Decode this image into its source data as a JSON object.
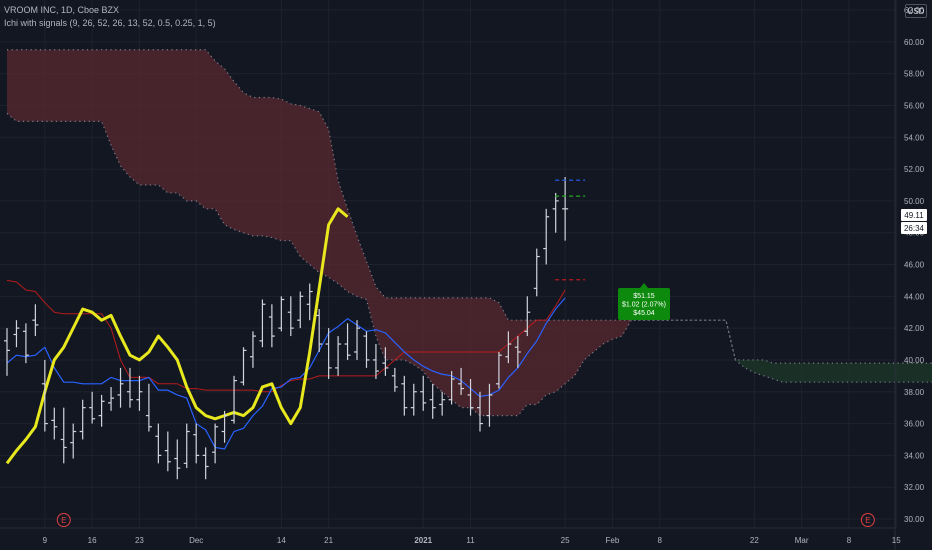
{
  "header": {
    "title": "VROOM INC, 1D, Cboe BZX",
    "indicator": "Ichi with signals (9, 26, 52, 26, 13, 52, 0.5, 0.25, 1, 5)",
    "currency": "USD"
  },
  "colors": {
    "background": "#131722",
    "grid": "#1e222d",
    "bars": "#d1d4dc",
    "conversion_line": "#2962ff",
    "base_line": "#b71c1c",
    "lagging_line": "#e8e81e",
    "cloud_bearish": "#5a2830",
    "cloud_bullish": "#1e3a2a",
    "label_bg": "#0d8a0d"
  },
  "chart_data": {
    "type": "ohlc",
    "title": "VROOM INC, 1D, Cboe BZX",
    "ylim": [
      29.5,
      62.5
    ],
    "y_ticks": [
      "62.00",
      "60.00",
      "58.00",
      "56.00",
      "54.00",
      "52.00",
      "50.00",
      "48.00",
      "46.00",
      "44.00",
      "42.00",
      "40.00",
      "38.00",
      "36.00",
      "34.00",
      "32.00",
      "30.00"
    ],
    "x_ticks": [
      "9",
      "16",
      "23",
      "Dec",
      "14",
      "21",
      "2021",
      "11",
      "25",
      "Feb",
      "8",
      "22",
      "Mar",
      "8",
      "15"
    ],
    "bars_ohlc": [
      [
        41.2,
        42.0,
        39.0,
        40.6
      ],
      [
        41.6,
        42.5,
        40.8,
        42.0
      ],
      [
        41.8,
        42.3,
        39.8,
        40.3
      ],
      [
        42.5,
        43.5,
        41.5,
        42.2
      ],
      [
        38.5,
        40.0,
        35.5,
        36.0
      ],
      [
        36.2,
        37.0,
        35.0,
        35.8
      ],
      [
        35.0,
        37.0,
        33.5,
        34.5
      ],
      [
        34.8,
        36.0,
        33.8,
        35.5
      ],
      [
        35.5,
        37.5,
        35.0,
        37.0
      ],
      [
        37.0,
        38.0,
        36.0,
        36.3
      ],
      [
        36.5,
        37.8,
        35.8,
        37.4
      ],
      [
        37.3,
        38.3,
        36.8,
        37.6
      ],
      [
        37.8,
        39.5,
        37.0,
        38.5
      ],
      [
        38.0,
        39.5,
        37.0,
        37.5
      ],
      [
        37.5,
        39.0,
        36.8,
        38.0
      ],
      [
        36.5,
        38.5,
        35.5,
        35.8
      ],
      [
        35.2,
        36.0,
        33.5,
        34.0
      ],
      [
        34.3,
        35.5,
        33.0,
        33.6
      ],
      [
        33.8,
        35.0,
        32.5,
        33.2
      ],
      [
        33.5,
        36.0,
        33.2,
        35.5
      ],
      [
        35.3,
        36.0,
        33.5,
        34.0
      ],
      [
        34.0,
        34.5,
        32.5,
        33.3
      ],
      [
        34.2,
        36.0,
        33.5,
        35.8
      ],
      [
        35.5,
        36.8,
        34.8,
        36.5
      ],
      [
        36.2,
        39.0,
        36.0,
        38.7
      ],
      [
        38.6,
        40.8,
        38.4,
        40.6
      ],
      [
        40.2,
        41.8,
        39.5,
        41.5
      ],
      [
        41.2,
        43.8,
        40.8,
        43.5
      ],
      [
        42.7,
        43.5,
        40.8,
        41.5
      ],
      [
        42.0,
        44.0,
        41.8,
        43.8
      ],
      [
        43.0,
        44.0,
        41.5,
        42.0
      ],
      [
        42.5,
        44.3,
        42.0,
        44.0
      ],
      [
        43.5,
        44.8,
        42.5,
        44.3
      ],
      [
        42.8,
        43.2,
        40.5,
        41.0
      ],
      [
        41.0,
        42.0,
        38.8,
        39.5
      ],
      [
        39.5,
        41.5,
        39.0,
        41.0
      ],
      [
        41.0,
        42.3,
        40.0,
        40.3
      ],
      [
        40.5,
        42.5,
        40.0,
        42.0
      ],
      [
        41.5,
        41.8,
        39.5,
        40.0
      ],
      [
        40.0,
        41.0,
        38.8,
        39.3
      ],
      [
        39.8,
        40.8,
        39.0,
        39.5
      ],
      [
        39.0,
        39.5,
        38.0,
        38.3
      ],
      [
        38.5,
        39.0,
        36.5,
        37.0
      ],
      [
        37.0,
        38.5,
        36.5,
        38.0
      ],
      [
        38.0,
        39.0,
        36.8,
        37.3
      ],
      [
        37.5,
        38.5,
        36.3,
        37.0
      ],
      [
        37.2,
        38.0,
        36.5,
        37.5
      ],
      [
        37.5,
        39.3,
        37.2,
        38.8
      ],
      [
        38.5,
        39.5,
        37.8,
        38.2
      ],
      [
        37.8,
        38.8,
        36.5,
        37.0
      ],
      [
        37.0,
        38.0,
        35.5,
        36.0
      ],
      [
        36.5,
        38.5,
        35.8,
        37.8
      ],
      [
        38.5,
        40.5,
        38.2,
        40.3
      ],
      [
        40.2,
        41.8,
        39.8,
        41.0
      ],
      [
        40.8,
        41.5,
        39.5,
        40.5
      ],
      [
        41.8,
        44.0,
        41.5,
        43.0
      ],
      [
        44.5,
        47.0,
        44.0,
        46.5
      ],
      [
        47.0,
        49.5,
        46.0,
        49.0
      ],
      [
        49.5,
        50.5,
        48.0,
        50.0
      ],
      [
        49.5,
        51.5,
        47.5,
        49.5
      ]
    ],
    "bar_dates_start": "2020-11-03",
    "conversion_line": [
      39.8,
      40.3,
      40.2,
      40.3,
      40.8,
      39.5,
      38.6,
      38.6,
      38.5,
      38.5,
      38.5,
      38.9,
      38.7,
      38.7,
      38.7,
      38.9,
      38.1,
      38.1,
      37.8,
      37.6,
      36.0,
      35.6,
      34.5,
      34.4,
      35.5,
      35.7,
      36.5,
      37.1,
      38.2,
      38.3,
      38.8,
      38.9,
      39.5,
      40.6,
      41.7,
      42.1,
      42.6,
      42.2,
      41.8,
      41.9,
      41.7,
      41.1,
      40.5,
      40.0,
      39.6,
      39.3,
      39.1,
      39.0,
      38.7,
      38.2,
      37.7,
      37.8,
      38.1,
      38.9,
      39.5,
      40.4,
      41.2,
      42.3,
      43.2,
      43.9
    ],
    "base_line": [
      45.0,
      44.9,
      44.4,
      44.3,
      43.6,
      43.0,
      42.9,
      42.9,
      42.9,
      42.9,
      42.9,
      42.0,
      40.0,
      38.9,
      38.9,
      38.9,
      38.5,
      38.5,
      38.5,
      38.2,
      38.2,
      38.1,
      38.1,
      38.1,
      38.1,
      38.1,
      38.1,
      38.0,
      38.0,
      38.4,
      38.7,
      38.8,
      38.8,
      39.0,
      39.0,
      39.0,
      39.0,
      39.0,
      39.0,
      39.0,
      39.5,
      40.0,
      40.5,
      40.5,
      40.5,
      40.5,
      40.5,
      40.5,
      40.5,
      40.5,
      40.5,
      40.5,
      40.5,
      41.0,
      41.5,
      42.0,
      42.5,
      42.5,
      43.4,
      44.4
    ],
    "lagging_span": [
      33.5,
      34.3,
      35.0,
      35.8,
      38.0,
      40.0,
      40.8,
      42.0,
      43.2,
      43.0,
      42.5,
      42.8,
      41.5,
      40.3,
      40.0,
      40.5,
      41.5,
      40.8,
      40.0,
      38.3,
      37.0,
      36.5,
      36.3,
      36.5,
      36.7,
      36.5,
      37.0,
      38.3,
      38.5,
      37.0,
      36.0,
      37.0,
      40.5,
      44.5,
      48.5,
      49.5,
      49.0
    ],
    "senkou_a": [
      59.5,
      59.5,
      59.5,
      59.5,
      59.5,
      59.5,
      59.5,
      59.5,
      59.5,
      59.5,
      59.5,
      59.5,
      59.5,
      59.5,
      59.5,
      59.5,
      59.5,
      59.5,
      59.5,
      59.5,
      59.5,
      59.5,
      58.8,
      58.3,
      57.5,
      56.8,
      56.5,
      56.5,
      56.5,
      56.4,
      56.1,
      56.0,
      55.8,
      55.6,
      54.5,
      51.3,
      49.5,
      47.8,
      46.2,
      44.6,
      43.9,
      43.9,
      43.9,
      43.9,
      43.9,
      43.9,
      43.9,
      43.9,
      43.9,
      43.9,
      43.9,
      43.9,
      43.6,
      42.5,
      42.5,
      42.5,
      42.5,
      42.5,
      42.5,
      42.5,
      42.5,
      42.5,
      42.5,
      42.5,
      42.5,
      42.5,
      42.5,
      42.5,
      42.5,
      42.5,
      42.5,
      42.5,
      42.5,
      42.5,
      42.5,
      42.5,
      42.5,
      40.0,
      40.0,
      40.0,
      40.0,
      39.8,
      39.8,
      39.8,
      39.8,
      39.8,
      39.8,
      39.8,
      39.8,
      39.8,
      39.8,
      39.8,
      39.8,
      39.8,
      39.8,
      39.8,
      39.8,
      39.8,
      39.8,
      39.8,
      40.0,
      40.5,
      41.0,
      41.8,
      42.5,
      43.0
    ],
    "senkou_b": [
      55.5,
      55.0,
      55.0,
      55.0,
      55.0,
      55.0,
      55.0,
      55.0,
      55.0,
      55.0,
      55.0,
      53.5,
      52.2,
      51.5,
      51.0,
      51.0,
      51.0,
      50.5,
      50.5,
      50.0,
      50.0,
      49.5,
      49.5,
      48.5,
      48.2,
      48.0,
      47.8,
      47.8,
      47.7,
      47.5,
      47.5,
      46.5,
      46.0,
      45.5,
      45.2,
      44.8,
      44.3,
      44.0,
      43.8,
      41.5,
      40.0,
      40.0,
      40.0,
      39.7,
      39.3,
      38.5,
      38.0,
      37.5,
      37.0,
      37.0,
      36.5,
      36.5,
      36.5,
      36.5,
      36.5,
      37.2,
      37.2,
      37.8,
      38.0,
      38.5,
      39.0,
      40.0,
      40.5,
      41.0,
      41.3,
      41.5,
      42.5,
      42.5,
      42.5,
      42.5,
      42.5,
      42.5,
      42.5,
      42.5,
      42.5,
      42.5,
      42.5,
      40.0,
      39.5,
      39.2,
      39.0,
      38.8,
      38.6,
      38.6,
      38.6,
      38.6,
      38.6,
      38.6,
      38.6,
      38.6,
      38.6,
      38.6,
      38.6,
      38.6,
      38.6,
      38.6,
      38.6,
      38.6,
      38.6,
      38.6,
      38.6,
      38.6,
      38.6,
      38.6,
      39.0,
      40.5
    ],
    "signal_levels": [
      51.3,
      50.3,
      45.04
    ],
    "current_price_label": "49.11",
    "countdown_label": "26:34",
    "tooltip_lines": [
      "$51.15",
      "$1.02 (2.07%)",
      "$45.04"
    ],
    "earnings_markers": [
      "E",
      "E"
    ],
    "earnings_dates": [
      "2020-11-11",
      "2021-03-10"
    ]
  }
}
